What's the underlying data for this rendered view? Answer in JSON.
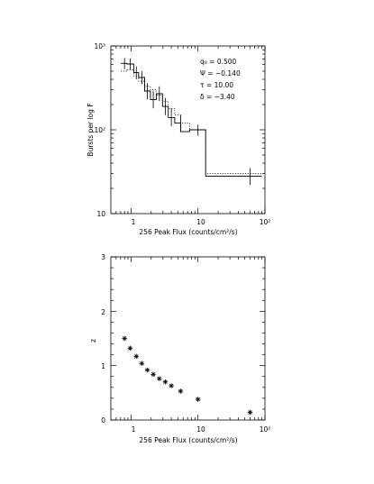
{
  "chart_data": [
    {
      "type": "line",
      "xscale": "log",
      "yscale": "log",
      "xlim": [
        0.5,
        100
      ],
      "ylim": [
        10,
        1000
      ],
      "xlabel": "256 Peak Flux (counts/cm²/s)",
      "ylabel": "Bursts per log F",
      "xtick_labels": [
        "1",
        "10",
        "10²"
      ],
      "ytick_labels": [
        "10",
        "10²",
        "10³"
      ],
      "annotations": [
        "q₀ = 0.500",
        "Ψ = −0.140",
        "τ = 10.00",
        "δ = −3.40"
      ],
      "series": [
        {
          "style": "solid-step",
          "bin_edges": [
            0.7,
            0.87,
            1.1,
            1.3,
            1.6,
            1.95,
            2.4,
            2.95,
            3.6,
            4.5,
            5.5,
            7.5,
            13,
            90
          ],
          "values": [
            620,
            610,
            480,
            420,
            290,
            230,
            270,
            190,
            140,
            120,
            95,
            100,
            28
          ]
        },
        {
          "style": "dotted-step",
          "bin_edges": [
            0.7,
            0.87,
            1.1,
            1.3,
            1.6,
            1.95,
            2.4,
            2.95,
            3.6,
            4.5,
            5.5,
            7.5,
            13,
            90
          ],
          "values": [
            500,
            520,
            440,
            380,
            330,
            300,
            260,
            220,
            180,
            150,
            120,
            100,
            30
          ]
        },
        {
          "style": "error-bars",
          "points": [
            {
              "x": 0.8,
              "y": 620,
              "lo": 530,
              "hi": 720
            },
            {
              "x": 0.97,
              "y": 610,
              "lo": 520,
              "hi": 710
            },
            {
              "x": 1.2,
              "y": 480,
              "lo": 400,
              "hi": 570
            },
            {
              "x": 1.45,
              "y": 420,
              "lo": 350,
              "hi": 500
            },
            {
              "x": 1.75,
              "y": 290,
              "lo": 230,
              "hi": 360
            },
            {
              "x": 2.15,
              "y": 230,
              "lo": 180,
              "hi": 290
            },
            {
              "x": 2.65,
              "y": 270,
              "lo": 220,
              "hi": 330
            },
            {
              "x": 3.25,
              "y": 190,
              "lo": 150,
              "hi": 240
            },
            {
              "x": 4.0,
              "y": 140,
              "lo": 110,
              "hi": 180
            },
            {
              "x": 5.5,
              "y": 120,
              "lo": 95,
              "hi": 150
            },
            {
              "x": 10,
              "y": 100,
              "lo": 85,
              "hi": 115
            },
            {
              "x": 60,
              "y": 28,
              "lo": 22,
              "hi": 35
            }
          ]
        }
      ]
    },
    {
      "type": "scatter",
      "xscale": "log",
      "xlim": [
        0.5,
        100
      ],
      "ylim": [
        0,
        3
      ],
      "xlabel": "256 Peak Flux (counts/cm²/s)",
      "ylabel": "z",
      "xtick_labels": [
        "1",
        "10",
        "10²"
      ],
      "yticks": [
        0,
        1,
        2,
        3
      ],
      "marker": "asterisk",
      "x": [
        0.8,
        0.97,
        1.2,
        1.45,
        1.75,
        2.15,
        2.65,
        3.25,
        4.0,
        5.5,
        10,
        60
      ],
      "y": [
        1.5,
        1.32,
        1.17,
        1.04,
        0.92,
        0.84,
        0.76,
        0.7,
        0.63,
        0.53,
        0.38,
        0.14
      ]
    }
  ]
}
